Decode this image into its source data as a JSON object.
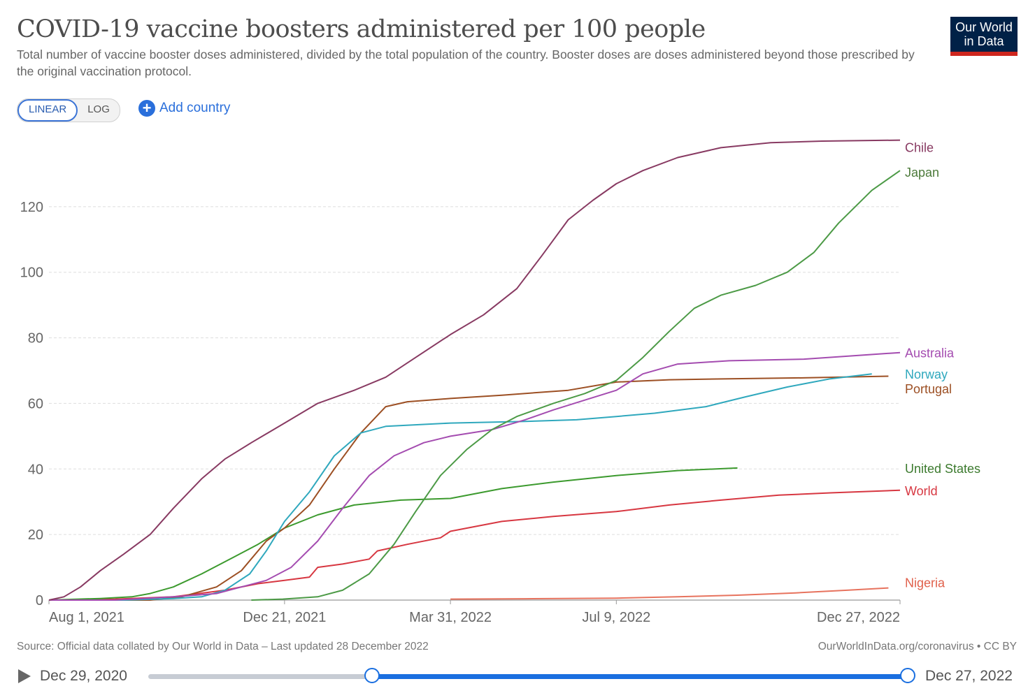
{
  "header": {
    "title": "COVID-19 vaccine boosters administered per 100 people",
    "subtitle": "Total number of vaccine booster doses administered, divided by the total population of the country. Booster doses are doses administered beyond those prescribed by the original vaccination protocol.",
    "logo_line1": "Our World",
    "logo_line2": "in Data"
  },
  "controls": {
    "linear_label": "LINEAR",
    "log_label": "LOG",
    "add_country_label": "Add country"
  },
  "footer": {
    "source": "Source: Official data collated by Our World in Data – Last updated 28 December 2022",
    "license": "OurWorldInData.org/coronavirus • CC BY"
  },
  "timeline": {
    "start_label": "Dec 29, 2020",
    "end_label": "Dec 27, 2022",
    "selected_start": "Aug 1, 2021",
    "selected_end": "Dec 27, 2022",
    "selected_start_fraction": 0.295,
    "selected_end_fraction": 1.0
  },
  "colors": {
    "Chile": "#883a62",
    "Japan": "#4c9a46",
    "Australia": "#a44cb0",
    "Norway": "#2fa8bd",
    "Portugal": "#9c4f23",
    "United States": "#3c9a2e",
    "World": "#d73741",
    "Nigeria": "#e7735e",
    "label_Chile": "#883a62",
    "label_Japan": "#4c7a3a",
    "label_Australia": "#a44cb0",
    "label_Norway": "#2fa8bd",
    "label_Portugal": "#9c4f23",
    "label_United States": "#3c7a2e",
    "label_World": "#d73741",
    "label_Nigeria": "#e0604b"
  },
  "chart_data": {
    "type": "line",
    "title": "COVID-19 vaccine boosters administered per 100 people",
    "xlabel": "",
    "ylabel": "",
    "x_start": "2021-08-01",
    "x_end": "2022-12-27",
    "x_ticks": [
      {
        "date": "2021-08-01",
        "label": "Aug 1, 2021"
      },
      {
        "date": "2021-12-21",
        "label": "Dec 21, 2021"
      },
      {
        "date": "2022-03-31",
        "label": "Mar 31, 2022"
      },
      {
        "date": "2022-07-09",
        "label": "Jul 9, 2022"
      },
      {
        "date": "2022-12-27",
        "label": "Dec 27, 2022"
      }
    ],
    "y_ticks": [
      0,
      20,
      40,
      60,
      80,
      100,
      120
    ],
    "ylim": [
      0,
      140
    ],
    "grid": "horizontal dashed",
    "legend": "line-end labels",
    "series": [
      {
        "name": "Chile",
        "points": [
          [
            "2021-08-01",
            0
          ],
          [
            "2021-08-10",
            1
          ],
          [
            "2021-08-20",
            4
          ],
          [
            "2021-09-01",
            9
          ],
          [
            "2021-09-15",
            14
          ],
          [
            "2021-10-01",
            20
          ],
          [
            "2021-10-15",
            28
          ],
          [
            "2021-11-01",
            37
          ],
          [
            "2021-11-15",
            43
          ],
          [
            "2021-12-01",
            48
          ],
          [
            "2021-12-21",
            54
          ],
          [
            "2022-01-10",
            60
          ],
          [
            "2022-02-01",
            64
          ],
          [
            "2022-02-20",
            68
          ],
          [
            "2022-03-10",
            74
          ],
          [
            "2022-03-31",
            81
          ],
          [
            "2022-04-20",
            87
          ],
          [
            "2022-05-10",
            95
          ],
          [
            "2022-05-25",
            105
          ],
          [
            "2022-06-10",
            116
          ],
          [
            "2022-06-25",
            122
          ],
          [
            "2022-07-09",
            127
          ],
          [
            "2022-07-25",
            131
          ],
          [
            "2022-08-15",
            135
          ],
          [
            "2022-09-10",
            138
          ],
          [
            "2022-10-10",
            139.5
          ],
          [
            "2022-11-10",
            140
          ],
          [
            "2022-12-27",
            140.3
          ]
        ]
      },
      {
        "name": "Japan",
        "points": [
          [
            "2021-12-01",
            0
          ],
          [
            "2021-12-20",
            0.3
          ],
          [
            "2022-01-10",
            1
          ],
          [
            "2022-01-25",
            3
          ],
          [
            "2022-02-10",
            8
          ],
          [
            "2022-02-25",
            17
          ],
          [
            "2022-03-10",
            27
          ],
          [
            "2022-03-25",
            38
          ],
          [
            "2022-04-10",
            46
          ],
          [
            "2022-04-25",
            52
          ],
          [
            "2022-05-10",
            56
          ],
          [
            "2022-06-01",
            60
          ],
          [
            "2022-06-20",
            63
          ],
          [
            "2022-07-09",
            67
          ],
          [
            "2022-07-25",
            74
          ],
          [
            "2022-08-10",
            82
          ],
          [
            "2022-08-25",
            89
          ],
          [
            "2022-09-10",
            93
          ],
          [
            "2022-10-01",
            96
          ],
          [
            "2022-10-20",
            100
          ],
          [
            "2022-11-05",
            106
          ],
          [
            "2022-11-20",
            115
          ],
          [
            "2022-12-10",
            125
          ],
          [
            "2022-12-27",
            131
          ]
        ]
      },
      {
        "name": "Australia",
        "points": [
          [
            "2021-08-01",
            0
          ],
          [
            "2021-09-10",
            0
          ],
          [
            "2021-10-15",
            1
          ],
          [
            "2021-11-10",
            2
          ],
          [
            "2021-11-25",
            4
          ],
          [
            "2021-12-10",
            6
          ],
          [
            "2021-12-25",
            10
          ],
          [
            "2022-01-10",
            18
          ],
          [
            "2022-01-25",
            28
          ],
          [
            "2022-02-10",
            38
          ],
          [
            "2022-02-25",
            44
          ],
          [
            "2022-03-15",
            48
          ],
          [
            "2022-03-31",
            50
          ],
          [
            "2022-04-25",
            52
          ],
          [
            "2022-05-15",
            55
          ],
          [
            "2022-06-01",
            58
          ],
          [
            "2022-06-20",
            61
          ],
          [
            "2022-07-09",
            64
          ],
          [
            "2022-07-25",
            69
          ],
          [
            "2022-08-15",
            72
          ],
          [
            "2022-09-15",
            73
          ],
          [
            "2022-10-30",
            73.5
          ],
          [
            "2022-12-27",
            75.5
          ]
        ]
      },
      {
        "name": "Norway",
        "points": [
          [
            "2021-08-01",
            0
          ],
          [
            "2021-09-15",
            0
          ],
          [
            "2021-10-15",
            0.5
          ],
          [
            "2021-11-01",
            1
          ],
          [
            "2021-11-15",
            3
          ],
          [
            "2021-11-30",
            8
          ],
          [
            "2021-12-10",
            15
          ],
          [
            "2021-12-21",
            24
          ],
          [
            "2022-01-05",
            33
          ],
          [
            "2022-01-20",
            44
          ],
          [
            "2022-02-05",
            51
          ],
          [
            "2022-02-20",
            53
          ],
          [
            "2022-03-31",
            54
          ],
          [
            "2022-05-15",
            54.5
          ],
          [
            "2022-06-15",
            55
          ],
          [
            "2022-07-09",
            56
          ],
          [
            "2022-08-01",
            57
          ],
          [
            "2022-09-01",
            59
          ],
          [
            "2022-09-25",
            62
          ],
          [
            "2022-10-20",
            65
          ],
          [
            "2022-11-15",
            67.5
          ],
          [
            "2022-12-10",
            69
          ]
        ]
      },
      {
        "name": "Portugal",
        "points": [
          [
            "2021-08-01",
            0
          ],
          [
            "2021-10-01",
            0
          ],
          [
            "2021-10-20",
            1
          ],
          [
            "2021-11-10",
            4
          ],
          [
            "2021-11-25",
            9
          ],
          [
            "2021-12-10",
            18
          ],
          [
            "2021-12-21",
            22
          ],
          [
            "2022-01-05",
            29
          ],
          [
            "2022-01-20",
            40
          ],
          [
            "2022-02-05",
            51
          ],
          [
            "2022-02-20",
            59
          ],
          [
            "2022-03-05",
            60.5
          ],
          [
            "2022-03-31",
            61.5
          ],
          [
            "2022-05-01",
            62.5
          ],
          [
            "2022-06-10",
            64
          ],
          [
            "2022-07-09",
            66.5
          ],
          [
            "2022-08-10",
            67.2
          ],
          [
            "2022-09-15",
            67.5
          ],
          [
            "2022-11-01",
            67.8
          ],
          [
            "2022-12-20",
            68.3
          ]
        ]
      },
      {
        "name": "United States",
        "points": [
          [
            "2021-08-01",
            0
          ],
          [
            "2021-09-01",
            0.5
          ],
          [
            "2021-09-20",
            1
          ],
          [
            "2021-10-01",
            2
          ],
          [
            "2021-10-15",
            4
          ],
          [
            "2021-11-01",
            8
          ],
          [
            "2021-11-20",
            13
          ],
          [
            "2021-12-05",
            17
          ],
          [
            "2021-12-21",
            22
          ],
          [
            "2022-01-10",
            26
          ],
          [
            "2022-02-01",
            29
          ],
          [
            "2022-03-01",
            30.5
          ],
          [
            "2022-03-31",
            31
          ],
          [
            "2022-05-01",
            34
          ],
          [
            "2022-06-01",
            36
          ],
          [
            "2022-07-09",
            38
          ],
          [
            "2022-08-15",
            39.5
          ],
          [
            "2022-09-20",
            40.3
          ]
        ]
      },
      {
        "name": "World",
        "points": [
          [
            "2021-08-01",
            0
          ],
          [
            "2021-09-10",
            0.3
          ],
          [
            "2021-10-15",
            1
          ],
          [
            "2021-11-15",
            3
          ],
          [
            "2021-12-05",
            5
          ],
          [
            "2021-12-21",
            6
          ],
          [
            "2022-01-05",
            7
          ],
          [
            "2022-01-10",
            10
          ],
          [
            "2022-01-25",
            11
          ],
          [
            "2022-02-10",
            12.5
          ],
          [
            "2022-02-15",
            15
          ],
          [
            "2022-03-05",
            17
          ],
          [
            "2022-03-25",
            19
          ],
          [
            "2022-03-31",
            21
          ],
          [
            "2022-05-01",
            24
          ],
          [
            "2022-06-01",
            25.5
          ],
          [
            "2022-07-09",
            27
          ],
          [
            "2022-08-10",
            29
          ],
          [
            "2022-09-10",
            30.5
          ],
          [
            "2022-10-15",
            32
          ],
          [
            "2022-11-15",
            32.7
          ],
          [
            "2022-12-27",
            33.5
          ]
        ]
      },
      {
        "name": "Nigeria",
        "points": [
          [
            "2022-03-31",
            0.3
          ],
          [
            "2022-05-15",
            0.4
          ],
          [
            "2022-07-09",
            0.6
          ],
          [
            "2022-08-15",
            1
          ],
          [
            "2022-09-20",
            1.5
          ],
          [
            "2022-10-25",
            2.2
          ],
          [
            "2022-11-25",
            3
          ],
          [
            "2022-12-20",
            3.7
          ]
        ]
      }
    ]
  }
}
